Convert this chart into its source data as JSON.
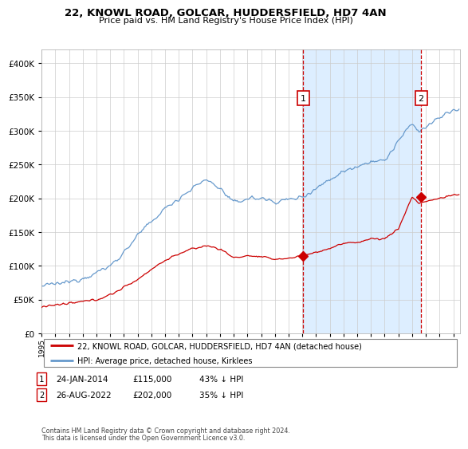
{
  "title": "22, KNOWL ROAD, GOLCAR, HUDDERSFIELD, HD7 4AN",
  "subtitle": "Price paid vs. HM Land Registry's House Price Index (HPI)",
  "legend_line1": "22, KNOWL ROAD, GOLCAR, HUDDERSFIELD, HD7 4AN (detached house)",
  "legend_line2": "HPI: Average price, detached house, Kirklees",
  "footer": "Contains HM Land Registry data © Crown copyright and database right 2024.\nThis data is licensed under the Open Government Licence v3.0.",
  "red_color": "#cc0000",
  "blue_color": "#6699cc",
  "blue_fill": "#ddeeff",
  "marker1_year": 2014.07,
  "marker2_year": 2022.65,
  "marker1_price": 115000,
  "marker2_price": 202000,
  "ylim": [
    0,
    420000
  ],
  "yticks": [
    0,
    50000,
    100000,
    150000,
    200000,
    250000,
    300000,
    350000,
    400000
  ],
  "hpi_anchors_years": [
    1995,
    1996,
    1997,
    1998,
    1999,
    2000,
    2001,
    2002,
    2003,
    2004,
    2005,
    2006,
    2007,
    2008,
    2009,
    2010,
    2011,
    2012,
    2013,
    2014,
    2015,
    2016,
    2017,
    2018,
    2019,
    2020,
    2021,
    2022,
    2022.5,
    2023,
    2024,
    2025
  ],
  "hpi_anchors_vals": [
    70000,
    73000,
    76000,
    82000,
    90000,
    100000,
    120000,
    145000,
    165000,
    185000,
    200000,
    215000,
    228000,
    215000,
    193000,
    200000,
    200000,
    195000,
    198000,
    202000,
    215000,
    228000,
    240000,
    248000,
    255000,
    255000,
    285000,
    310000,
    300000,
    305000,
    320000,
    330000
  ],
  "prop_anchors_years": [
    1995,
    1996,
    1997,
    1998,
    1999,
    2000,
    2001,
    2002,
    2003,
    2004,
    2005,
    2006,
    2007,
    2008,
    2009,
    2010,
    2011,
    2012,
    2013,
    2014,
    2015,
    2016,
    2017,
    2018,
    2019,
    2020,
    2021,
    2022,
    2022.5,
    2023,
    2024,
    2025
  ],
  "prop_anchors_vals": [
    40000,
    42000,
    44000,
    47000,
    50000,
    57000,
    68000,
    80000,
    95000,
    108000,
    118000,
    125000,
    130000,
    125000,
    112000,
    115000,
    113000,
    110000,
    111000,
    115000,
    120000,
    126000,
    133000,
    135000,
    140000,
    140000,
    155000,
    202000,
    193000,
    195000,
    200000,
    205000
  ]
}
